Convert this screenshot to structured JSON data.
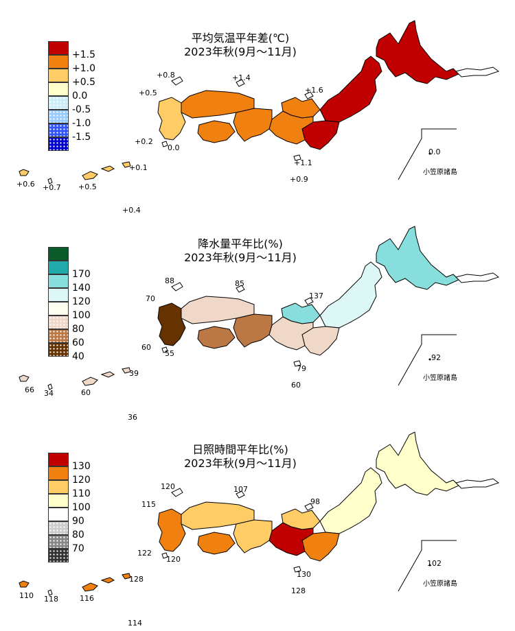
{
  "panels": [
    {
      "title_line1": "平均気温平年差(℃)",
      "title_line2": "2023年秋(9月～11月)",
      "legend": [
        {
          "label": "+1.5",
          "color": "#c00000",
          "pattern": "solid"
        },
        {
          "label": "+1.0",
          "color": "#f08010",
          "pattern": "solid"
        },
        {
          "label": "+0.5",
          "color": "#ffcc66",
          "pattern": "solid"
        },
        {
          "label": "0.0",
          "color": "#ffffcc",
          "pattern": "solid"
        },
        {
          "label": "-0.5",
          "color": "#ccecf8",
          "pattern": "dots"
        },
        {
          "label": "-1.0",
          "color": "#99ccff",
          "pattern": "dots"
        },
        {
          "label": "-1.5",
          "color": "#3355ff",
          "pattern": "dots"
        },
        {
          "label": "",
          "color": "#0000cc",
          "pattern": "dots"
        }
      ],
      "values": [
        "+0.8",
        "+1.4",
        "+0.5",
        "+1.6",
        "+0.2",
        "0.0",
        "+1.1",
        "+0.9",
        "+0.1",
        "+0.6",
        "+0.7",
        "+0.5",
        "+0.4",
        "0.0"
      ],
      "ogasawara": "小笠原諸島",
      "region_colors": {
        "hokkaido": "#c00000",
        "tohoku": "#c00000",
        "kanto": "#c00000",
        "hokuriku": "#f08010",
        "chubu": "#f08010",
        "kinki": "#f08010",
        "chugoku": "#f08010",
        "shikoku": "#f08010",
        "kyushu": "#ffcc66",
        "okinawa": "#ffcc66"
      }
    },
    {
      "title_line1": "降水量平年比(%)",
      "title_line2": "2023年秋(9月～11月)",
      "legend": [
        {
          "label": "",
          "color": "#0b5a2a",
          "pattern": "solid"
        },
        {
          "label": "170",
          "color": "#22aaaa",
          "pattern": "solid"
        },
        {
          "label": "140",
          "color": "#88dddd",
          "pattern": "solid"
        },
        {
          "label": "120",
          "color": "#ddf6f6",
          "pattern": "solid"
        },
        {
          "label": "100",
          "color": "#ffffee",
          "pattern": "dots"
        },
        {
          "label": "80",
          "color": "#f0d8c8",
          "pattern": "dots"
        },
        {
          "label": "60",
          "color": "#bb7744",
          "pattern": "dots"
        },
        {
          "label": "40",
          "color": "#663300",
          "pattern": "dots"
        }
      ],
      "values": [
        "88",
        "85",
        "70",
        "137",
        "60",
        "55",
        "79",
        "60",
        "39",
        "66",
        "34",
        "60",
        "36",
        "92"
      ],
      "ogasawara": "小笠原諸島",
      "region_colors": {
        "hokkaido": "#88dddd",
        "tohoku": "#ddf6f6",
        "kanto": "#f0d8c8",
        "hokuriku": "#88dddd",
        "chubu": "#f0d8c8",
        "kinki": "#bb7744",
        "chugoku": "#f0d8c8",
        "shikoku": "#bb7744",
        "kyushu": "#663300",
        "okinawa": "#f0d8c8"
      }
    },
    {
      "title_line1": "日照時間平年比(%)",
      "title_line2": "2023年秋(9月～11月)",
      "legend": [
        {
          "label": "130",
          "color": "#c00000",
          "pattern": "solid"
        },
        {
          "label": "120",
          "color": "#f08010",
          "pattern": "solid"
        },
        {
          "label": "110",
          "color": "#ffcc66",
          "pattern": "solid"
        },
        {
          "label": "100",
          "color": "#ffffcc",
          "pattern": "solid"
        },
        {
          "label": "90",
          "color": "#ffffff",
          "pattern": "dots"
        },
        {
          "label": "80",
          "color": "#cccccc",
          "pattern": "dots"
        },
        {
          "label": "70",
          "color": "#888888",
          "pattern": "dots"
        },
        {
          "label": "",
          "color": "#333333",
          "pattern": "dots"
        }
      ],
      "values": [
        "120",
        "107",
        "115",
        "98",
        "122",
        "120",
        "130",
        "128",
        "128",
        "110",
        "118",
        "116",
        "114",
        "102"
      ],
      "ogasawara": "小笠原諸島",
      "region_colors": {
        "hokkaido": "#ffffcc",
        "tohoku": "#ffffcc",
        "kanto": "#f08010",
        "hokuriku": "#ffcc66",
        "chubu": "#c00000",
        "kinki": "#ffcc66",
        "chugoku": "#ffcc66",
        "shikoku": "#f08010",
        "kyushu": "#f08010",
        "okinawa": "#f08010"
      }
    }
  ]
}
